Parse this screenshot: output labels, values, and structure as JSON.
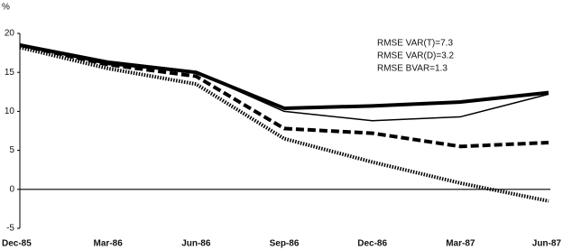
{
  "chart_data": {
    "type": "line",
    "y_label": "%",
    "categories": [
      "Dec-85",
      "Mar-86",
      "Jun-86",
      "Sep-86",
      "Dec-86",
      "Mar-87",
      "Jun-87"
    ],
    "series": [
      {
        "color": "#000000",
        "values": [
          18.5,
          16.3,
          15.0,
          10.4,
          10.7,
          11.2,
          12.4
        ]
      },
      {
        "color": "#000000",
        "values": [
          18.5,
          16.0,
          15.0,
          10.0,
          8.8,
          9.3,
          12.2
        ]
      },
      {
        "color": "#000000",
        "values": [
          18.5,
          16.0,
          14.5,
          7.8,
          7.2,
          5.5,
          6.0
        ]
      },
      {
        "color": "#000000",
        "values": [
          18.2,
          15.5,
          13.5,
          6.5,
          3.5,
          0.8,
          -1.5
        ]
      }
    ],
    "annotations": [
      "RMSE VAR(T)=7.3",
      "RMSE VAR(D)=3.2",
      "RMSE BVAR=1.3"
    ],
    "ylim": [
      -5,
      20
    ],
    "yticks": [
      -5,
      0,
      5,
      10,
      15,
      20
    ]
  }
}
